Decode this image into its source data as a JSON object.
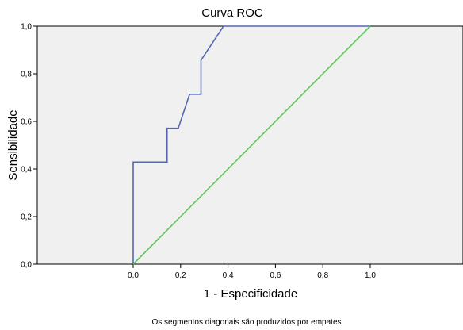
{
  "chart_data": {
    "type": "line",
    "title": "Curva ROC",
    "xlabel": "1 - Especificidade",
    "ylabel": "Sensibilidade",
    "footnote": "Os segmentos diagonais são produzidos por empates",
    "xlim": [
      0,
      1
    ],
    "ylim": [
      0,
      1
    ],
    "x_ticks": [
      "0,0",
      "0,2",
      "0,4",
      "0,6",
      "0,8",
      "1,0"
    ],
    "y_ticks": [
      "0,0",
      "0,2",
      "0,4",
      "0,6",
      "0,8",
      "1,0"
    ],
    "grid": false,
    "legend": "none",
    "series": [
      {
        "color": "#5468b0",
        "x": [
          0.0,
          0.0,
          0.143,
          0.143,
          0.19,
          0.238,
          0.286,
          0.286,
          0.381,
          1.0
        ],
        "y": [
          0.0,
          0.429,
          0.429,
          0.571,
          0.571,
          0.714,
          0.714,
          0.857,
          1.0,
          1.0
        ]
      },
      {
        "color": "#5bc85b",
        "x": [
          0.0,
          1.0
        ],
        "y": [
          0.0,
          1.0
        ]
      }
    ],
    "plot_background": "#f0f0f0"
  }
}
